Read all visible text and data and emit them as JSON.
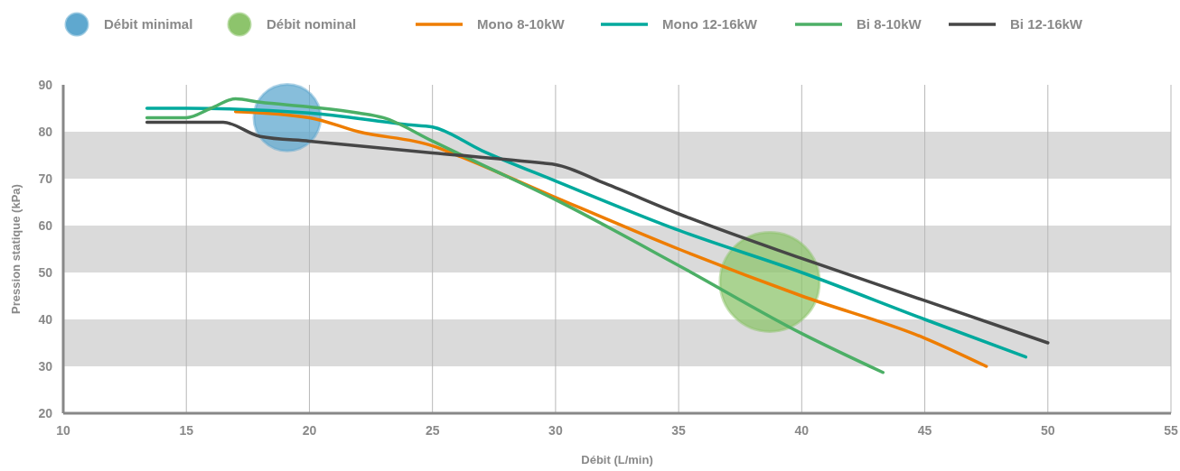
{
  "chart_data": {
    "type": "line",
    "xlabel": "Débit (L/min)",
    "ylabel": "Pression statique (kPa)",
    "xlim": [
      10,
      55
    ],
    "xticks": [
      10,
      15,
      20,
      25,
      30,
      35,
      40,
      45,
      50,
      55
    ],
    "ylim": [
      20,
      90
    ],
    "yticks": [
      20,
      30,
      40,
      50,
      60,
      70,
      80,
      90
    ],
    "grid": "x",
    "legend": "top",
    "bands": [
      {
        "axis": "y",
        "from": 70,
        "to": 80,
        "color": "#dadada"
      },
      {
        "axis": "y",
        "from": 50,
        "to": 60,
        "color": "#dadada"
      },
      {
        "axis": "y",
        "from": 30,
        "to": 40,
        "color": "#dadada"
      }
    ],
    "series": [
      {
        "name": "Débit minimal",
        "type": "bubble",
        "color": "#5fa8cf",
        "x": [
          19.1
        ],
        "values": [
          83
        ],
        "sizes": [
          0.45
        ]
      },
      {
        "name": "Débit nominal",
        "type": "bubble",
        "color": "#8dc46c",
        "x": [
          38.7
        ],
        "values": [
          48
        ],
        "sizes": [
          1
        ]
      },
      {
        "name": "Mono 8-10kW",
        "color": "#ee7d00",
        "x": [
          17,
          20,
          22,
          25,
          26,
          30,
          35,
          40,
          45,
          47.5
        ],
        "values": [
          84.3,
          83,
          80,
          77,
          75,
          66,
          55,
          45,
          36,
          30
        ]
      },
      {
        "name": "Mono 12-16kW",
        "color": "#00a99d",
        "x": [
          13.4,
          15,
          20,
          24,
          25,
          27,
          30,
          35,
          40,
          45,
          49.1
        ],
        "values": [
          85,
          85,
          84,
          81.5,
          81,
          76,
          69.5,
          59,
          50,
          40,
          32
        ]
      },
      {
        "name": "Bi 8-10kW",
        "color": "#4caf66",
        "x": [
          13.4,
          15,
          16,
          17,
          18,
          20,
          22,
          23,
          25,
          27,
          30,
          35,
          40,
          43.3
        ],
        "values": [
          83,
          83,
          85,
          87,
          86.3,
          85.3,
          84,
          83,
          78,
          73,
          65.5,
          51.5,
          37,
          28.7
        ]
      },
      {
        "name": "Bi 12-16kW",
        "color": "#464646",
        "x": [
          13.4,
          16,
          16.5,
          18,
          20,
          25,
          29.5,
          30,
          32,
          35,
          40,
          45,
          50
        ],
        "values": [
          82,
          82,
          82,
          79,
          78,
          75.5,
          73.3,
          73,
          69,
          62.5,
          53,
          44,
          35
        ]
      }
    ]
  }
}
